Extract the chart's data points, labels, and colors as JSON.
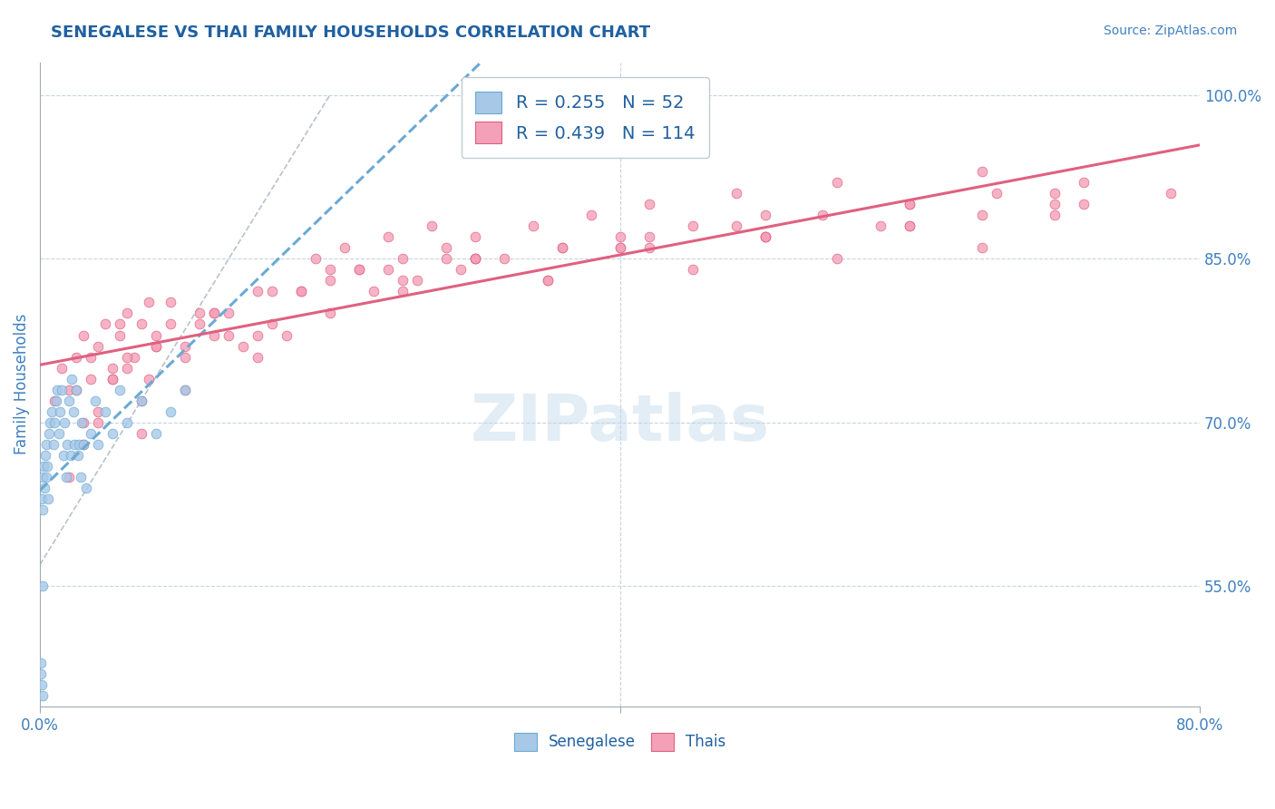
{
  "title": "SENEGALESE VS THAI FAMILY HOUSEHOLDS CORRELATION CHART",
  "source": "Source: ZipAtlas.com",
  "ylabel": "Family Households",
  "ylabel_right_ticks": [
    55.0,
    70.0,
    85.0,
    100.0
  ],
  "xlim": [
    0.0,
    80.0
  ],
  "ylim": [
    44.0,
    103.0
  ],
  "senegalese_color": "#a8c8e8",
  "thai_color": "#f4a0b8",
  "senegalese_edge": "#6aaad4",
  "thai_edge": "#e06080",
  "trend_senegalese_color": "#6aaad4",
  "trend_thai_color": "#e06080",
  "ref_line_color": "#b0bcc8",
  "legend_R_senegalese": "0.255",
  "legend_N_senegalese": "52",
  "legend_R_thai": "0.439",
  "legend_N_thai": "114",
  "senegalese_x": [
    0.1,
    0.15,
    0.2,
    0.25,
    0.3,
    0.35,
    0.4,
    0.45,
    0.5,
    0.55,
    0.6,
    0.7,
    0.8,
    0.9,
    1.0,
    1.1,
    1.2,
    1.3,
    1.4,
    1.5,
    1.6,
    1.7,
    1.8,
    1.9,
    2.0,
    2.1,
    2.2,
    2.3,
    2.4,
    2.5,
    2.6,
    2.7,
    2.8,
    2.9,
    3.0,
    3.2,
    3.5,
    3.8,
    4.0,
    4.5,
    5.0,
    5.5,
    6.0,
    7.0,
    8.0,
    9.0,
    10.0,
    0.1,
    0.15,
    0.2,
    0.08,
    0.05
  ],
  "senegalese_y": [
    63.0,
    65.0,
    62.0,
    66.0,
    64.0,
    67.0,
    65.0,
    68.0,
    66.0,
    63.0,
    69.0,
    70.0,
    71.0,
    68.0,
    70.0,
    72.0,
    73.0,
    69.0,
    71.0,
    73.0,
    67.0,
    70.0,
    65.0,
    68.0,
    72.0,
    67.0,
    74.0,
    71.0,
    68.0,
    73.0,
    67.0,
    68.0,
    65.0,
    70.0,
    68.0,
    64.0,
    69.0,
    72.0,
    68.0,
    71.0,
    69.0,
    73.0,
    70.0,
    72.0,
    69.0,
    71.0,
    73.0,
    46.0,
    45.0,
    55.0,
    47.0,
    48.0
  ],
  "thai_x": [
    1.0,
    1.5,
    2.0,
    2.5,
    3.0,
    3.5,
    4.0,
    4.5,
    5.0,
    5.5,
    6.0,
    6.5,
    7.0,
    7.5,
    8.0,
    9.0,
    10.0,
    11.0,
    12.0,
    13.0,
    14.0,
    15.0,
    16.0,
    17.0,
    18.0,
    19.0,
    20.0,
    21.0,
    22.0,
    23.0,
    24.0,
    25.0,
    26.0,
    27.0,
    28.0,
    29.0,
    30.0,
    32.0,
    34.0,
    36.0,
    38.0,
    40.0,
    42.0,
    45.0,
    48.0,
    50.0,
    55.0,
    60.0,
    65.0,
    70.0,
    3.0,
    4.0,
    5.0,
    6.0,
    7.0,
    8.0,
    10.0,
    12.0,
    15.0,
    20.0,
    25.0,
    30.0,
    35.0,
    40.0,
    45.0,
    50.0,
    55.0,
    60.0,
    65.0,
    70.0,
    2.0,
    3.0,
    5.0,
    7.0,
    10.0,
    15.0,
    20.0,
    25.0,
    30.0,
    40.0,
    50.0,
    60.0,
    70.0,
    4.0,
    6.0,
    8.0,
    12.0,
    18.0,
    24.0,
    30.0,
    36.0,
    42.0,
    48.0,
    54.0,
    60.0,
    66.0,
    72.0,
    2.5,
    3.5,
    5.5,
    7.5,
    9.0,
    11.0,
    13.0,
    16.0,
    22.0,
    28.0,
    35.0,
    42.0,
    50.0,
    58.0,
    65.0,
    72.0,
    78.0
  ],
  "thai_y": [
    72.0,
    75.0,
    73.0,
    76.0,
    78.0,
    74.0,
    77.0,
    79.0,
    75.0,
    78.0,
    80.0,
    76.0,
    79.0,
    81.0,
    77.0,
    81.0,
    76.0,
    79.0,
    78.0,
    80.0,
    77.0,
    82.0,
    79.0,
    78.0,
    82.0,
    85.0,
    83.0,
    86.0,
    84.0,
    82.0,
    87.0,
    85.0,
    83.0,
    88.0,
    86.0,
    84.0,
    87.0,
    85.0,
    88.0,
    86.0,
    89.0,
    87.0,
    90.0,
    88.0,
    91.0,
    89.0,
    92.0,
    90.0,
    93.0,
    91.0,
    68.0,
    71.0,
    74.0,
    76.0,
    72.0,
    78.0,
    77.0,
    80.0,
    78.0,
    84.0,
    82.0,
    85.0,
    83.0,
    86.0,
    84.0,
    87.0,
    85.0,
    88.0,
    86.0,
    89.0,
    65.0,
    70.0,
    74.0,
    69.0,
    73.0,
    76.0,
    80.0,
    83.0,
    85.0,
    86.0,
    87.0,
    88.0,
    90.0,
    70.0,
    75.0,
    77.0,
    80.0,
    82.0,
    84.0,
    85.0,
    86.0,
    87.0,
    88.0,
    89.0,
    90.0,
    91.0,
    92.0,
    73.0,
    76.0,
    79.0,
    74.0,
    79.0,
    80.0,
    78.0,
    82.0,
    84.0,
    85.0,
    83.0,
    86.0,
    87.0,
    88.0,
    89.0,
    90.0,
    91.0
  ],
  "background_color": "#ffffff",
  "grid_color": "#c8d4de",
  "title_color": "#2060a0",
  "axis_label_color": "#4080c0",
  "tick_label_color": "#4080c0",
  "legend_text_color": "#2060a0",
  "watermark_text": "ZIPatlas",
  "watermark_color": "#c0d8ea"
}
